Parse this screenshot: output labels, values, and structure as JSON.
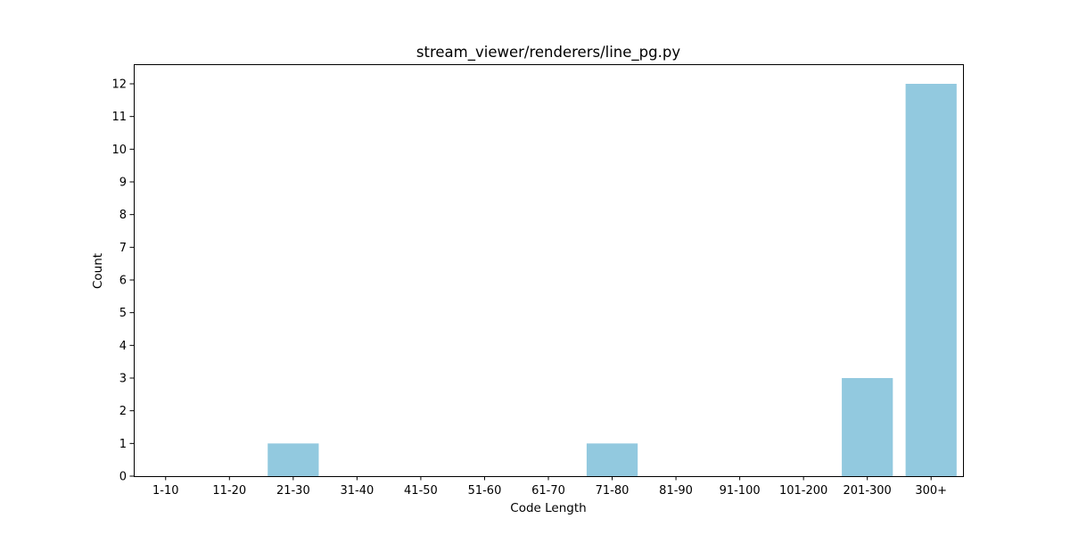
{
  "chart_data": {
    "type": "bar",
    "title": "stream_viewer/renderers/line_pg.py",
    "xlabel": "Code Length",
    "ylabel": "Count",
    "categories": [
      "1-10",
      "11-20",
      "21-30",
      "31-40",
      "41-50",
      "51-60",
      "61-70",
      "71-80",
      "81-90",
      "91-100",
      "101-200",
      "201-300",
      "300+"
    ],
    "values": [
      0,
      0,
      1,
      0,
      0,
      0,
      0,
      1,
      0,
      0,
      0,
      3,
      12
    ],
    "yticks": [
      0,
      1,
      2,
      3,
      4,
      5,
      6,
      7,
      8,
      9,
      10,
      11,
      12
    ],
    "ylim": [
      0,
      12.6
    ],
    "bar_color": "#92C9DF",
    "grid": false,
    "legend": "none"
  }
}
